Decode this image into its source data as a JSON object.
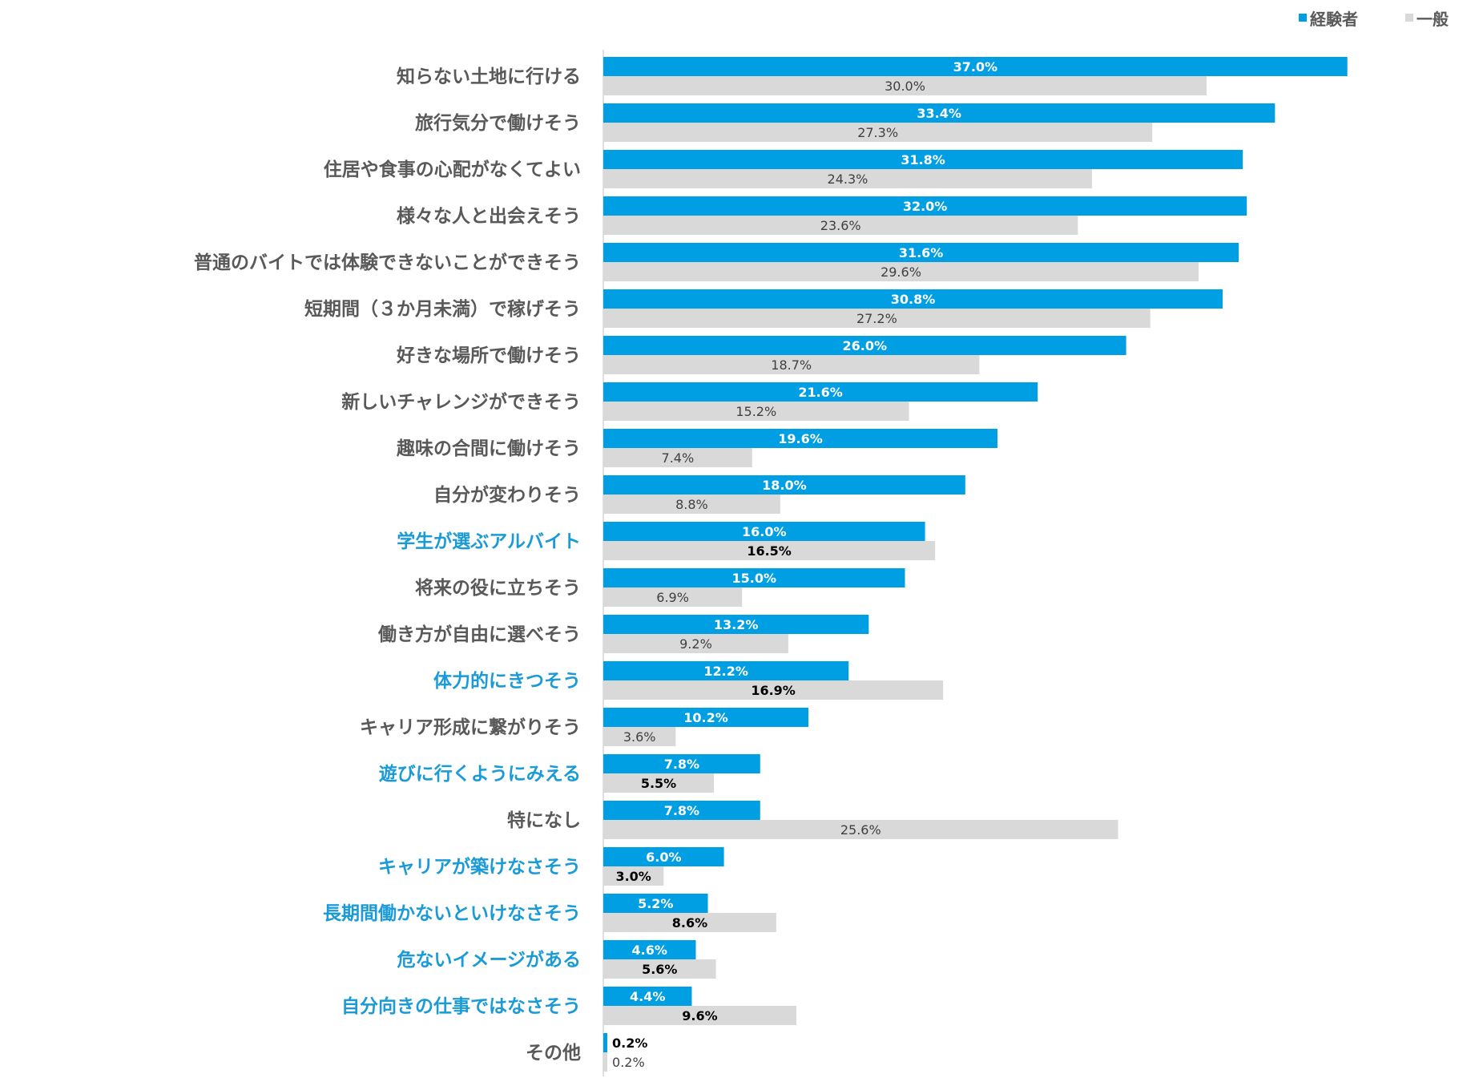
{
  "chart_data": {
    "type": "bar",
    "orientation": "horizontal",
    "value_format": "percent_1dp",
    "legend_position": "top-right",
    "grid": false,
    "xlim": [
      0,
      40
    ],
    "colors": {
      "series_1": "#009FE3",
      "series_2": "#D9D9D9",
      "category_highlight": "#1A9BD7",
      "category_default": "#595959",
      "label_on_bar_1": "#FFFFFF",
      "label_default": "#404040",
      "label_highlight": "#000000"
    },
    "series": [
      {
        "name": "経験者",
        "values": [
          37.0,
          33.4,
          31.8,
          32.0,
          31.6,
          30.8,
          26.0,
          21.6,
          19.6,
          18.0,
          16.0,
          15.0,
          13.2,
          12.2,
          10.2,
          7.8,
          7.8,
          6.0,
          5.2,
          4.6,
          4.4,
          0.2
        ]
      },
      {
        "name": "一般",
        "values": [
          30.0,
          27.3,
          24.3,
          23.6,
          29.6,
          27.2,
          18.7,
          15.2,
          7.4,
          8.8,
          16.5,
          6.9,
          9.2,
          16.9,
          3.6,
          5.5,
          25.6,
          3.0,
          8.6,
          5.6,
          9.6,
          0.2
        ]
      }
    ],
    "categories": [
      "知らない土地に行ける",
      "旅行気分で働けそう",
      "住居や食事の心配がなくてよい",
      "様々な人と出会えそう",
      "普通のバイトでは体験できないことができそう",
      "短期間（３か月未満）で稼げそう",
      "好きな場所で働けそう",
      "新しいチャレンジができそう",
      "趣味の合間に働けそう",
      "自分が変わりそう",
      "学生が選ぶアルバイト",
      "将来の役に立ちそう",
      "働き方が自由に選べそう",
      "体力的にきつそう",
      "キャリア形成に繋がりそう",
      "遊びに行くようにみえる",
      "特になし",
      "キャリアが築けなさそう",
      "長期間働かないといけなさそう",
      "危ないイメージがある",
      "自分向きの仕事ではなさそう",
      "その他"
    ],
    "highlighted_categories": [
      10,
      13,
      15,
      17,
      18,
      19,
      20
    ]
  }
}
